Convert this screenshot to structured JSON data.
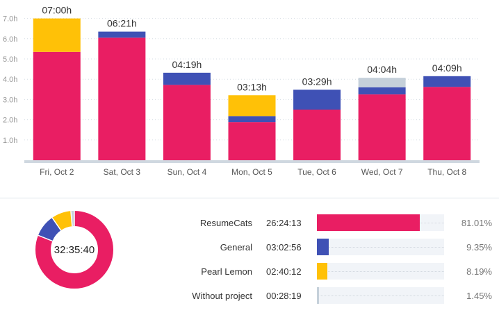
{
  "chart_data": [
    {
      "type": "bar",
      "stacked": true,
      "categories": [
        "Fri, Oct 2",
        "Sat, Oct 3",
        "Sun, Oct 4",
        "Mon, Oct 5",
        "Tue, Oct 6",
        "Wed, Oct 7",
        "Thu, Oct 8"
      ],
      "totals": [
        "07:00h",
        "06:21h",
        "04:19h",
        "03:13h",
        "03:29h",
        "04:04h",
        "04:09h"
      ],
      "y_ticks": [
        "1.0h",
        "2.0h",
        "3.0h",
        "4.0h",
        "5.0h",
        "6.0h",
        "7.0h"
      ],
      "ylim": [
        0,
        7.2
      ],
      "grid": true,
      "series": [
        {
          "name": "ResumeCats",
          "color": "#e91e63",
          "values": [
            5.35,
            6.05,
            3.72,
            1.88,
            2.5,
            3.25,
            3.62
          ]
        },
        {
          "name": "General",
          "color": "#3f51b5",
          "values": [
            0,
            0.3,
            0.6,
            0.3,
            0.98,
            0.35,
            0.53
          ]
        },
        {
          "name": "Pearl Lemon",
          "color": "#ffc107",
          "values": [
            1.65,
            0,
            0,
            1.03,
            0,
            0,
            0
          ]
        },
        {
          "name": "Without project",
          "color": "#c5d0da",
          "values": [
            0,
            0,
            0,
            0,
            0,
            0.47,
            0
          ]
        }
      ]
    },
    {
      "type": "pie",
      "donut": true,
      "center_label": "32:35:40",
      "labels": [
        "ResumeCats",
        "General",
        "Pearl Lemon",
        "Without project"
      ],
      "values": [
        81.01,
        9.35,
        8.19,
        1.45
      ],
      "colors": [
        "#e91e63",
        "#3f51b5",
        "#ffc107",
        "#c5d0da"
      ]
    }
  ],
  "projects": [
    {
      "name": "ResumeCats",
      "time": "26:24:13",
      "percent": "81.01%",
      "fraction": 0.8101,
      "color": "#e91e63"
    },
    {
      "name": "General",
      "time": "03:02:56",
      "percent": "9.35%",
      "fraction": 0.0935,
      "color": "#3f51b5"
    },
    {
      "name": "Pearl Lemon",
      "time": "02:40:12",
      "percent": "8.19%",
      "fraction": 0.0819,
      "color": "#ffc107"
    },
    {
      "name": "Without project",
      "time": "00:28:19",
      "percent": "1.45%",
      "fraction": 0.0145,
      "color": "#c5d0da"
    }
  ]
}
